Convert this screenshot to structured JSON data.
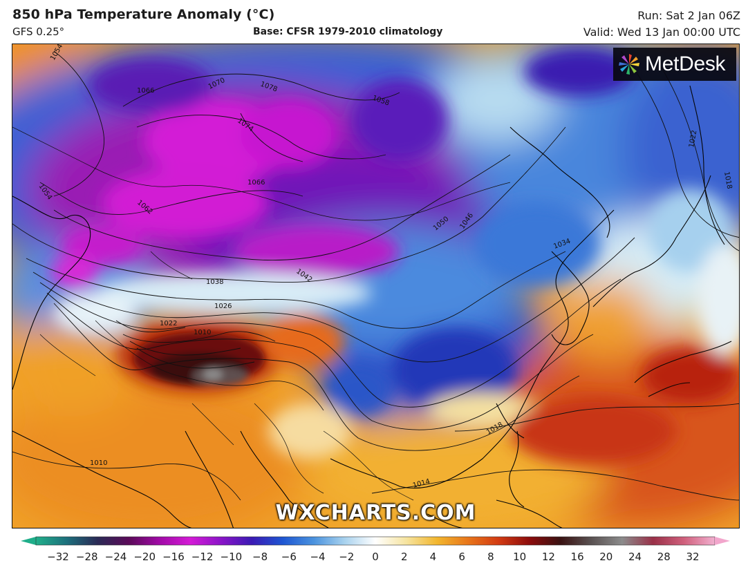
{
  "header": {
    "title": "850 hPa Temperature Anomaly (°C)",
    "model": "GFS 0.25°",
    "base": "Base: CFSR 1979-2010 climatology",
    "run": "Run: Sat 2 Jan 06Z",
    "valid": "Valid: Wed 13 Jan 00:00 UTC"
  },
  "map": {
    "logo_text": "MetDesk",
    "logo_icon": "metdesk-pinwheel-icon",
    "watermark": "WXCHARTS.COM",
    "isobar_labels": {
      "p1054a": "1054",
      "p1066": "1066",
      "p1070": "1070",
      "p1078": "1078",
      "p1058": "1058",
      "p1074": "1074",
      "p1054b": "1054",
      "p1066b": "1066",
      "p1062": "1062",
      "p1050": "1050",
      "p1046": "1046",
      "p1042": "1042",
      "p1038": "1038",
      "p1034": "1034",
      "p1026": "1026",
      "p1022": "1022",
      "p1010a": "1010",
      "p1018": "1018",
      "p1014": "1014",
      "p1010b": "1010",
      "p1022b": "1022",
      "p1018b": "1018"
    }
  },
  "colorbar": {
    "ticks": [
      "−32",
      "−28",
      "−24",
      "−20",
      "−16",
      "−12",
      "−10",
      "−8",
      "−6",
      "−4",
      "−2",
      "0",
      "2",
      "4",
      "6",
      "8",
      "10",
      "12",
      "16",
      "20",
      "24",
      "28",
      "32"
    ],
    "colors": {
      "min_extend": "#1fae8a",
      "max_extend": "#f2a6cc"
    },
    "stops": [
      "#20b08a",
      "#1d6f7c",
      "#2a2a55",
      "#5a0a58",
      "#a00aa6",
      "#d41ad6",
      "#8a14c8",
      "#3a1ab4",
      "#1e56d2",
      "#4a92de",
      "#a8d2ee",
      "#ffffff",
      "#f6e4a0",
      "#f2b62e",
      "#e8761a",
      "#d23a12",
      "#8c0c0c",
      "#3a1212",
      "#5a5252",
      "#8c8c8c",
      "#9a3048",
      "#d0607c",
      "#f2b0d0"
    ]
  }
}
